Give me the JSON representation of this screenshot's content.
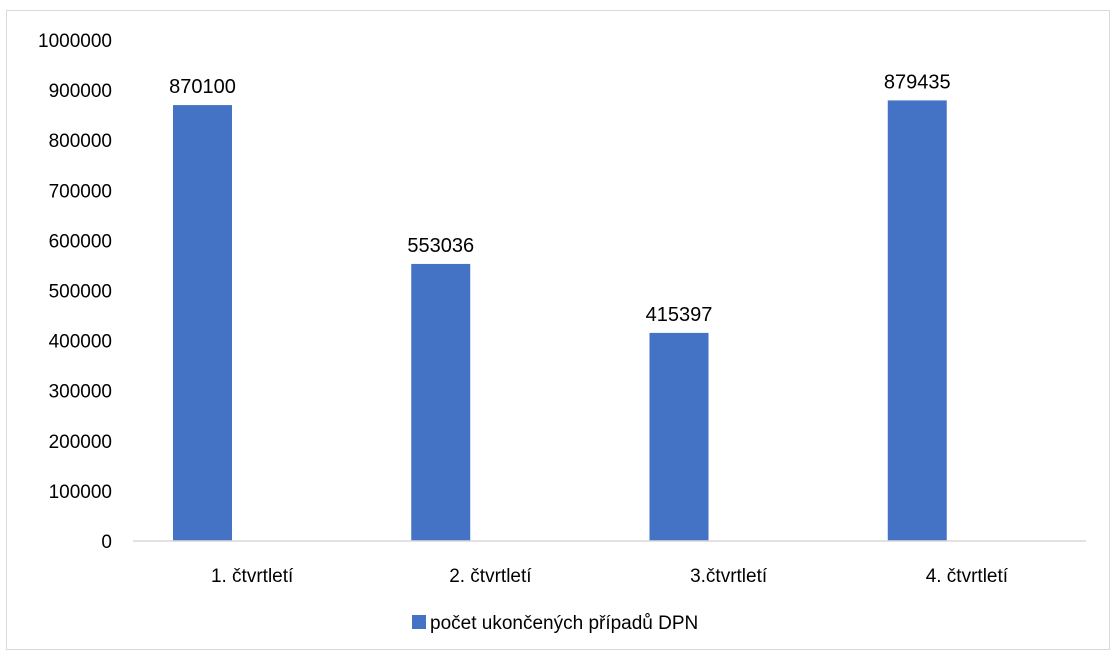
{
  "chart_data": {
    "type": "bar",
    "categories": [
      "1. čtvrtletí",
      "2. čtvrtletí",
      "3.čtvrtletí",
      "4. čtvrtletí"
    ],
    "series": [
      {
        "name": "počet ukončených případů DPN",
        "values": [
          870100,
          553036,
          415397,
          879435
        ],
        "color": "#4472c4"
      }
    ],
    "ylim": [
      0,
      1000000
    ],
    "yticks": [
      0,
      100000,
      200000,
      300000,
      400000,
      500000,
      600000,
      700000,
      800000,
      900000,
      1000000
    ],
    "grid": false,
    "data_labels": true,
    "legend_position": "bottom"
  }
}
